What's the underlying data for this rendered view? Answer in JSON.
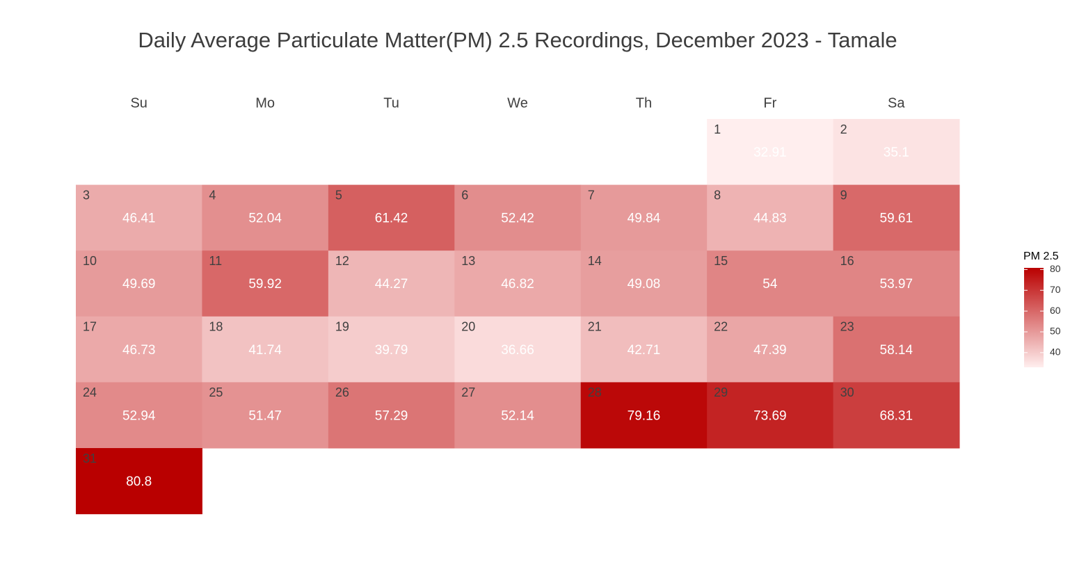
{
  "chart_data": {
    "type": "heatmap",
    "title": "Daily Average Particulate Matter(PM) 2.5 Recordings, December 2023 - Tamale",
    "weekdays": [
      "Su",
      "Mo",
      "Tu",
      "We",
      "Th",
      "Fr",
      "Sa"
    ],
    "first_weekday_index": 5,
    "days": [
      {
        "day": "1",
        "value": 32.91
      },
      {
        "day": "2",
        "value": 35.1
      },
      {
        "day": "3",
        "value": 46.41
      },
      {
        "day": "4",
        "value": 52.04
      },
      {
        "day": "5",
        "value": 61.42
      },
      {
        "day": "6",
        "value": 52.42
      },
      {
        "day": "7",
        "value": 49.84
      },
      {
        "day": "8",
        "value": 44.83
      },
      {
        "day": "9",
        "value": 59.61
      },
      {
        "day": "10",
        "value": 49.69
      },
      {
        "day": "11",
        "value": 59.92
      },
      {
        "day": "12",
        "value": 44.27
      },
      {
        "day": "13",
        "value": 46.82
      },
      {
        "day": "14",
        "value": 49.08
      },
      {
        "day": "15",
        "value": 54
      },
      {
        "day": "16",
        "value": 53.97
      },
      {
        "day": "17",
        "value": 46.73
      },
      {
        "day": "18",
        "value": 41.74
      },
      {
        "day": "19",
        "value": 39.79
      },
      {
        "day": "20",
        "value": 36.66
      },
      {
        "day": "21",
        "value": 42.71
      },
      {
        "day": "22",
        "value": 47.39
      },
      {
        "day": "23",
        "value": 58.14
      },
      {
        "day": "24",
        "value": 52.94
      },
      {
        "day": "25",
        "value": 51.47
      },
      {
        "day": "26",
        "value": 57.29
      },
      {
        "day": "27",
        "value": 52.14
      },
      {
        "day": "28",
        "value": 79.16
      },
      {
        "day": "29",
        "value": 73.69
      },
      {
        "day": "30",
        "value": 68.31
      },
      {
        "day": "31",
        "value": 80.8
      }
    ],
    "legend": {
      "title": "PM 2.5",
      "ticks": [
        "40",
        "50",
        "60",
        "70",
        "80"
      ],
      "tick_values": [
        40,
        50,
        60,
        70,
        80
      ],
      "range": [
        32.91,
        80.8
      ],
      "placement": "right"
    },
    "color_low": "#ffeeee",
    "color_high": "#b90000",
    "value_label_color": "#ffffff",
    "day_label_color": "#404040"
  }
}
